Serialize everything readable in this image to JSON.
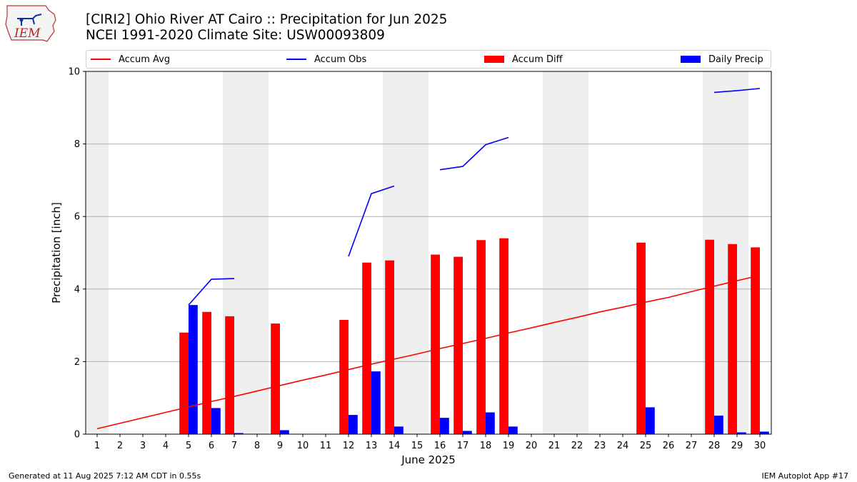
{
  "header": {
    "title_line1": "[CIRI2] Ohio River  AT Cairo :: Precipitation for Jun 2025",
    "title_line2": "NCEI 1991-2020 Climate Site: USW00093809",
    "logo_text": "IEM"
  },
  "footer": {
    "generated": "Generated at 11 Aug 2025 7:12 AM CDT in 0.55s",
    "app": "IEM Autoplot App #17"
  },
  "legend": [
    {
      "label": "Accum Avg",
      "kind": "line",
      "color": "#ff0000"
    },
    {
      "label": "Accum Obs",
      "kind": "line",
      "color": "#0000ff"
    },
    {
      "label": "Accum Diff",
      "kind": "bar",
      "color": "#ff0000"
    },
    {
      "label": "Daily Precip",
      "kind": "bar",
      "color": "#0000ff"
    }
  ],
  "chart_data": {
    "type": "bar",
    "xlabel": "June 2025",
    "ylabel": "Precipitation [inch]",
    "ylim": [
      0,
      10
    ],
    "yticks": [
      0,
      2,
      4,
      6,
      8,
      10
    ],
    "xlim": [
      0.5,
      30.5
    ],
    "days": [
      1,
      2,
      3,
      4,
      5,
      6,
      7,
      8,
      9,
      10,
      11,
      12,
      13,
      14,
      15,
      16,
      17,
      18,
      19,
      20,
      21,
      22,
      23,
      24,
      25,
      26,
      27,
      28,
      29,
      30
    ],
    "weekend_spans": [
      [
        0.5,
        1.5
      ],
      [
        6.5,
        8.5
      ],
      [
        13.5,
        15.5
      ],
      [
        20.5,
        22.5
      ],
      [
        27.5,
        29.5
      ]
    ],
    "grid": "y",
    "legend_position": "top",
    "series": [
      {
        "name": "Accum Avg",
        "type": "line",
        "color": "#ff0000",
        "values": [
          0.15,
          0.3,
          0.45,
          0.6,
          0.75,
          0.9,
          1.04,
          1.19,
          1.34,
          1.49,
          1.63,
          1.78,
          1.93,
          2.07,
          2.21,
          2.36,
          2.5,
          2.64,
          2.79,
          2.93,
          3.08,
          3.22,
          3.37,
          3.5,
          3.64,
          3.77,
          3.93,
          4.08,
          4.23,
          4.38
        ]
      },
      {
        "name": "Accum Obs",
        "type": "line",
        "color": "#0000ff",
        "segments": [
          {
            "x": [
              5,
              6,
              7
            ],
            "y": [
              3.56,
              4.27,
              4.29
            ]
          },
          {
            "x": [
              12,
              13,
              14
            ],
            "y": [
              4.9,
              6.63,
              6.84
            ]
          },
          {
            "x": [
              16,
              17,
              18,
              19
            ],
            "y": [
              7.29,
              7.38,
              7.98,
              8.18
            ]
          },
          {
            "x": [
              28,
              29,
              30
            ],
            "y": [
              9.42,
              9.47,
              9.53
            ]
          }
        ]
      },
      {
        "name": "Accum Diff",
        "type": "bar",
        "color": "#ff0000",
        "values": [
          null,
          null,
          null,
          null,
          2.8,
          3.37,
          3.25,
          null,
          3.05,
          null,
          null,
          3.15,
          4.73,
          4.79,
          null,
          4.95,
          4.89,
          5.35,
          5.4,
          null,
          null,
          null,
          null,
          null,
          5.28,
          null,
          null,
          5.36,
          5.24,
          5.15
        ]
      },
      {
        "name": "Daily Precip",
        "type": "bar",
        "color": "#0000ff",
        "values": [
          0,
          0,
          0,
          0,
          3.56,
          0.72,
          0.03,
          0,
          0.11,
          0,
          0,
          0.53,
          1.73,
          0.21,
          0,
          0.45,
          0.09,
          0.6,
          0.21,
          0,
          0,
          0,
          0,
          0,
          0.74,
          0,
          0,
          0.51,
          0.05,
          0.07
        ]
      }
    ]
  }
}
